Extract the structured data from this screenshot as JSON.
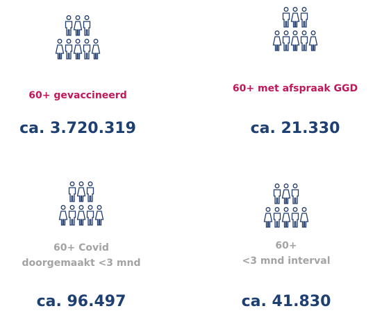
{
  "cards": [
    {
      "label": [
        "60+ gevaccineerd"
      ],
      "value": "ca. 3.720.319"
    },
    {
      "label": [
        "60+ met afspraak GGD"
      ],
      "value": "ca. 21.330"
    },
    {
      "label": [
        "60+ Covid",
        "doorgemaakt <3 mnd"
      ],
      "value": "ca. 96.497"
    },
    {
      "label": [
        "60+",
        "<3 mnd interval"
      ],
      "value": "ca. 41.830"
    }
  ]
}
